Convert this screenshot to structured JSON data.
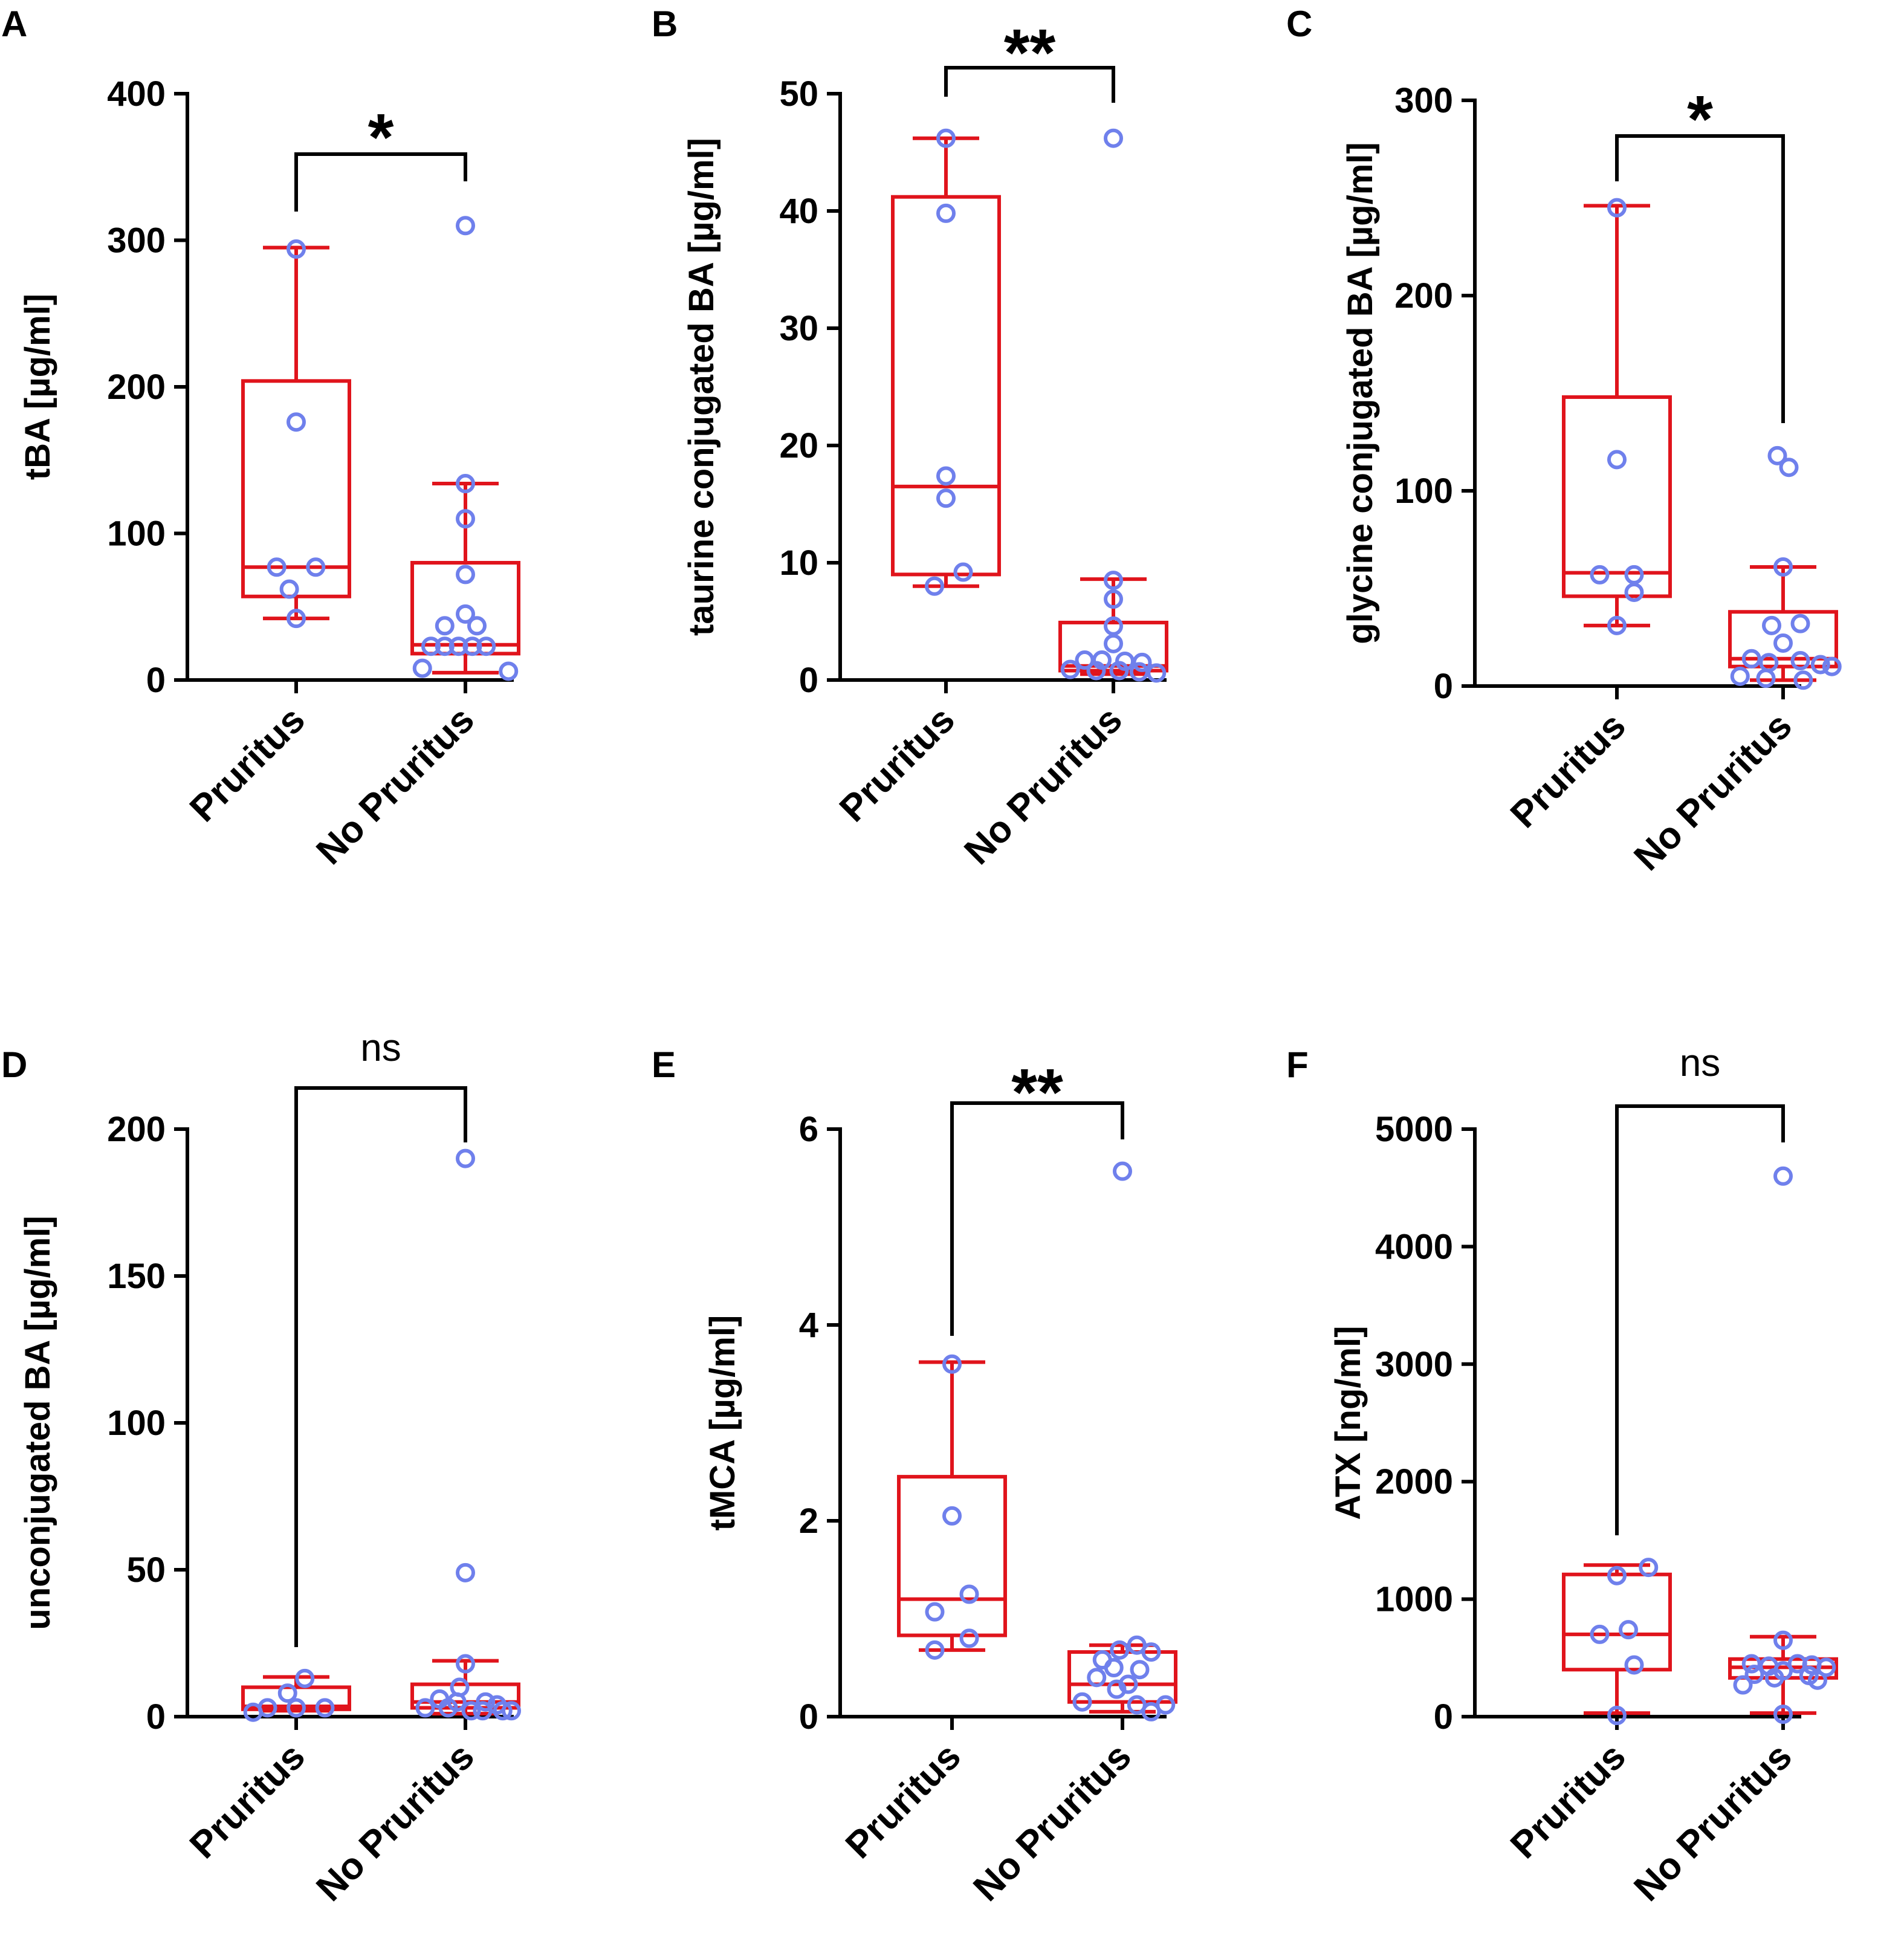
{
  "colors": {
    "box": "#e0141c",
    "point": "#6f80ec",
    "axis": "#000000"
  },
  "chart_data": [
    {
      "panel": "A",
      "type": "box",
      "ylabel": "tBA [µg/ml]",
      "ylim": [
        0,
        400
      ],
      "yticks": [
        0,
        100,
        200,
        300,
        400
      ],
      "ytick_labels": [
        "0",
        "100",
        "200",
        "300",
        "400"
      ],
      "categories": [
        "Pruritus",
        "No Pruritus"
      ],
      "significance": "*",
      "series": [
        {
          "name": "Pruritus",
          "whisker_low": 42,
          "q1": 57,
          "median": 77,
          "q3": 204,
          "whisker_high": 295,
          "points": [
            {
              "x": 0,
              "y": 294
            },
            {
              "x": 0,
              "y": 176
            },
            {
              "x": -0.34,
              "y": 77
            },
            {
              "x": 0.34,
              "y": 77
            },
            {
              "x": -0.12,
              "y": 62
            },
            {
              "x": 0,
              "y": 42
            }
          ]
        },
        {
          "name": "No Pruritus",
          "whisker_low": 5,
          "q1": 18,
          "median": 24,
          "q3": 80,
          "whisker_high": 134,
          "points": [
            {
              "x": 0,
              "y": 310
            },
            {
              "x": 0,
              "y": 134
            },
            {
              "x": 0,
              "y": 110
            },
            {
              "x": 0,
              "y": 72
            },
            {
              "x": 0,
              "y": 45
            },
            {
              "x": -0.36,
              "y": 37
            },
            {
              "x": 0.2,
              "y": 37
            },
            {
              "x": -0.6,
              "y": 23
            },
            {
              "x": -0.36,
              "y": 23
            },
            {
              "x": -0.12,
              "y": 23
            },
            {
              "x": 0.12,
              "y": 23
            },
            {
              "x": 0.36,
              "y": 23
            },
            {
              "x": -0.75,
              "y": 8
            },
            {
              "x": 0.75,
              "y": 6
            }
          ]
        }
      ]
    },
    {
      "panel": "B",
      "type": "box",
      "ylabel": "taurine conjugated BA [µg/ml]",
      "ylim": [
        0,
        50
      ],
      "yticks": [
        0,
        10,
        20,
        30,
        40,
        50
      ],
      "ytick_labels": [
        "0",
        "10",
        "20",
        "30",
        "40",
        "50"
      ],
      "categories": [
        "Pruritus",
        "No Pruritus"
      ],
      "significance": "**",
      "series": [
        {
          "name": "Pruritus",
          "whisker_low": 8,
          "q1": 9,
          "median": 16.5,
          "q3": 41.2,
          "whisker_high": 46.2,
          "points": [
            {
              "x": 0,
              "y": 46.2
            },
            {
              "x": 0,
              "y": 39.8
            },
            {
              "x": 0,
              "y": 17.4
            },
            {
              "x": 0,
              "y": 15.5
            },
            {
              "x": 0.3,
              "y": 9.2
            },
            {
              "x": -0.2,
              "y": 8
            }
          ]
        },
        {
          "name": "No Pruritus",
          "whisker_low": 0.5,
          "q1": 0.8,
          "median": 1.2,
          "q3": 4.9,
          "whisker_high": 8.6,
          "points": [
            {
              "x": 0,
              "y": 46.2
            },
            {
              "x": 0,
              "y": 8.5
            },
            {
              "x": 0,
              "y": 6.9
            },
            {
              "x": 0,
              "y": 4.6
            },
            {
              "x": 0,
              "y": 3.1
            },
            {
              "x": -0.5,
              "y": 1.7
            },
            {
              "x": -0.2,
              "y": 1.7
            },
            {
              "x": 0.2,
              "y": 1.6
            },
            {
              "x": 0.5,
              "y": 1.5
            },
            {
              "x": -0.75,
              "y": 0.9
            },
            {
              "x": -0.3,
              "y": 0.8
            },
            {
              "x": 0.1,
              "y": 0.8
            },
            {
              "x": 0.45,
              "y": 0.7
            },
            {
              "x": 0.75,
              "y": 0.6
            }
          ]
        }
      ]
    },
    {
      "panel": "C",
      "type": "box",
      "ylabel": "glycine conjugated BA [µg/ml]",
      "ylim": [
        0,
        300
      ],
      "yticks": [
        0,
        100,
        200,
        300
      ],
      "ytick_labels": [
        "0",
        "100",
        "200",
        "300"
      ],
      "categories": [
        "Pruritus",
        "No Pruritus"
      ],
      "significance": "*",
      "series": [
        {
          "name": "Pruritus",
          "whisker_low": 31,
          "q1": 46,
          "median": 58,
          "q3": 148,
          "whisker_high": 246,
          "points": [
            {
              "x": 0,
              "y": 245
            },
            {
              "x": 0,
              "y": 116
            },
            {
              "x": -0.3,
              "y": 57
            },
            {
              "x": 0.3,
              "y": 57
            },
            {
              "x": 0.3,
              "y": 48
            },
            {
              "x": 0,
              "y": 31
            }
          ]
        },
        {
          "name": "No Pruritus",
          "whisker_low": 3,
          "q1": 10,
          "median": 14,
          "q3": 38,
          "whisker_high": 61,
          "points": [
            {
              "x": -0.1,
              "y": 118
            },
            {
              "x": 0.1,
              "y": 112
            },
            {
              "x": 0,
              "y": 61
            },
            {
              "x": 0.3,
              "y": 32
            },
            {
              "x": -0.2,
              "y": 31
            },
            {
              "x": 0,
              "y": 22
            },
            {
              "x": -0.55,
              "y": 14
            },
            {
              "x": 0.3,
              "y": 13
            },
            {
              "x": -0.25,
              "y": 12
            },
            {
              "x": 0.65,
              "y": 11
            },
            {
              "x": 0.85,
              "y": 10
            },
            {
              "x": -0.75,
              "y": 5
            },
            {
              "x": -0.3,
              "y": 4
            },
            {
              "x": 0.35,
              "y": 3
            }
          ]
        }
      ]
    },
    {
      "panel": "D",
      "type": "box",
      "ylabel": "unconjugated BA [µg/ml]",
      "ylim": [
        0,
        200
      ],
      "yticks": [
        0,
        50,
        100,
        150,
        200
      ],
      "ytick_labels": [
        "0",
        "50",
        "100",
        "150",
        "200"
      ],
      "categories": [
        "Pruritus",
        "No Pruritus"
      ],
      "significance": "ns",
      "series": [
        {
          "name": "Pruritus",
          "whisker_low": 2,
          "q1": 2.5,
          "median": 3.5,
          "q3": 10,
          "whisker_high": 13.5,
          "points": [
            {
              "x": 0.15,
              "y": 13
            },
            {
              "x": -0.15,
              "y": 8
            },
            {
              "x": -0.5,
              "y": 3
            },
            {
              "x": 0,
              "y": 3
            },
            {
              "x": 0.5,
              "y": 3
            },
            {
              "x": -0.75,
              "y": 1.5
            }
          ]
        },
        {
          "name": "No Pruritus",
          "whisker_low": 1,
          "q1": 3,
          "median": 5,
          "q3": 11,
          "whisker_high": 19,
          "points": [
            {
              "x": 0,
              "y": 190
            },
            {
              "x": 0,
              "y": 49
            },
            {
              "x": 0,
              "y": 18
            },
            {
              "x": -0.1,
              "y": 10
            },
            {
              "x": -0.45,
              "y": 6
            },
            {
              "x": 0.35,
              "y": 5
            },
            {
              "x": -0.15,
              "y": 5
            },
            {
              "x": 0.55,
              "y": 4
            },
            {
              "x": -0.7,
              "y": 3
            },
            {
              "x": -0.3,
              "y": 3
            },
            {
              "x": 0.1,
              "y": 2
            },
            {
              "x": 0.3,
              "y": 2
            },
            {
              "x": 0.65,
              "y": 2
            },
            {
              "x": 0.8,
              "y": 2
            }
          ]
        }
      ]
    },
    {
      "panel": "E",
      "type": "box",
      "ylabel": "tMCA [µg/ml]",
      "ylim": [
        0,
        6
      ],
      "yticks": [
        0,
        2,
        4,
        6
      ],
      "ytick_labels": [
        "0",
        "2",
        "4",
        "6"
      ],
      "categories": [
        "Pruritus",
        "No Pruritus"
      ],
      "significance": "**",
      "series": [
        {
          "name": "Pruritus",
          "whisker_low": 0.68,
          "q1": 0.83,
          "median": 1.2,
          "q3": 2.45,
          "whisker_high": 3.62,
          "points": [
            {
              "x": 0,
              "y": 3.6
            },
            {
              "x": 0,
              "y": 2.05
            },
            {
              "x": 0.3,
              "y": 1.25
            },
            {
              "x": -0.3,
              "y": 1.07
            },
            {
              "x": 0.3,
              "y": 0.8
            },
            {
              "x": -0.3,
              "y": 0.68
            }
          ]
        },
        {
          "name": "No Pruritus",
          "whisker_low": 0.05,
          "q1": 0.15,
          "median": 0.33,
          "q3": 0.66,
          "whisker_high": 0.73,
          "points": [
            {
              "x": 0,
              "y": 5.57
            },
            {
              "x": 0.25,
              "y": 0.73
            },
            {
              "x": -0.05,
              "y": 0.68
            },
            {
              "x": 0.5,
              "y": 0.66
            },
            {
              "x": -0.35,
              "y": 0.58
            },
            {
              "x": -0.15,
              "y": 0.5
            },
            {
              "x": 0.3,
              "y": 0.48
            },
            {
              "x": -0.45,
              "y": 0.4
            },
            {
              "x": 0.1,
              "y": 0.33
            },
            {
              "x": -0.1,
              "y": 0.28
            },
            {
              "x": -0.7,
              "y": 0.15
            },
            {
              "x": 0.25,
              "y": 0.12
            },
            {
              "x": 0.75,
              "y": 0.12
            },
            {
              "x": 0.5,
              "y": 0.05
            }
          ]
        }
      ]
    },
    {
      "panel": "F",
      "type": "box",
      "ylabel": "ATX [ng/ml]",
      "ylim": [
        0,
        5000
      ],
      "yticks": [
        0,
        1000,
        2000,
        3000,
        4000,
        5000
      ],
      "ytick_labels": [
        "0",
        "1000",
        "2000",
        "3000",
        "4000",
        "5000"
      ],
      "categories": [
        "Pruritus",
        "No Pruritus"
      ],
      "significance": "ns",
      "series": [
        {
          "name": "Pruritus",
          "whisker_low": 30,
          "q1": 400,
          "median": 700,
          "q3": 1210,
          "whisker_high": 1290,
          "points": [
            {
              "x": 0.55,
              "y": 1270
            },
            {
              "x": 0,
              "y": 1200
            },
            {
              "x": 0.2,
              "y": 740
            },
            {
              "x": -0.3,
              "y": 700
            },
            {
              "x": 0.3,
              "y": 440
            },
            {
              "x": 0,
              "y": 10
            }
          ]
        },
        {
          "name": "No Pruritus",
          "whisker_low": 30,
          "q1": 330,
          "median": 420,
          "q3": 490,
          "whisker_high": 680,
          "points": [
            {
              "x": 0,
              "y": 4600
            },
            {
              "x": 0,
              "y": 650
            },
            {
              "x": -0.55,
              "y": 450
            },
            {
              "x": 0.25,
              "y": 450
            },
            {
              "x": 0.5,
              "y": 440
            },
            {
              "x": -0.25,
              "y": 430
            },
            {
              "x": 0.75,
              "y": 420
            },
            {
              "x": 0,
              "y": 390
            },
            {
              "x": -0.5,
              "y": 360
            },
            {
              "x": 0.45,
              "y": 350
            },
            {
              "x": -0.15,
              "y": 330
            },
            {
              "x": 0.6,
              "y": 310
            },
            {
              "x": -0.7,
              "y": 270
            },
            {
              "x": 0,
              "y": 20
            }
          ]
        }
      ]
    }
  ]
}
